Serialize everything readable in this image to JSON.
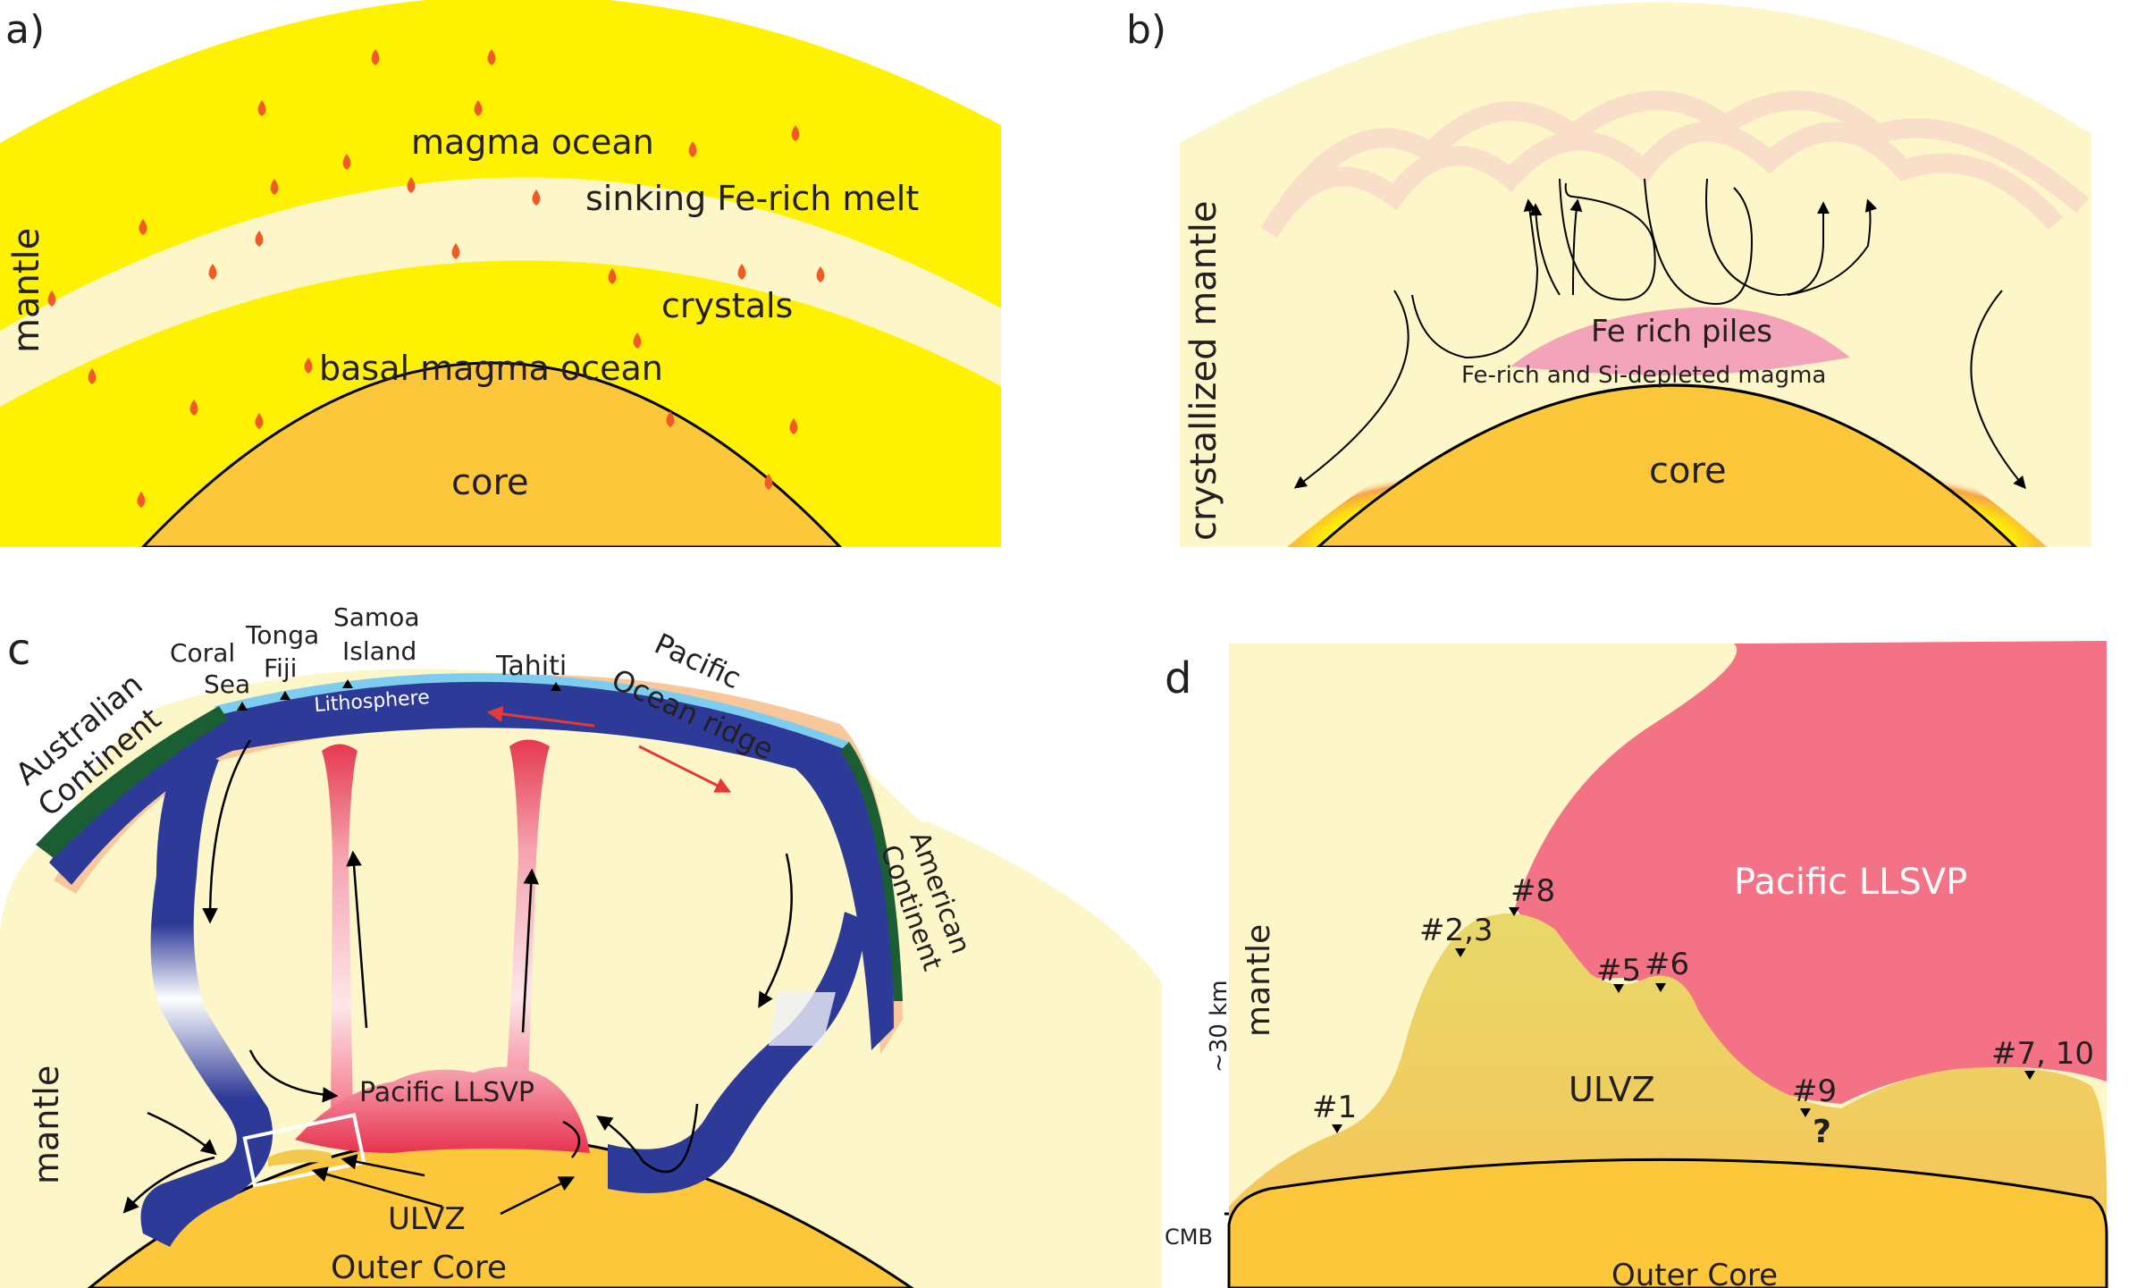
{
  "colors": {
    "yellow": "#fff200",
    "cream": "#fdf6c9",
    "core": "#fcc73a",
    "drop": "#f15a24",
    "pink": "#f47285",
    "ulvz": "#e8cf5e",
    "slab": "#2e3a97",
    "crust": "#1b5e34",
    "sky": "#7ccdf0",
    "peach": "#f8c79a",
    "red": "#e53935"
  },
  "panel_a": {
    "tag": "a)",
    "mantle": "mantle",
    "magma_ocean": "magma ocean",
    "sinking": "sinking Fe-rich melt",
    "crystals": "crystals",
    "basal": "basal magma ocean",
    "core": "core"
  },
  "panel_b": {
    "tag": "b)",
    "mantle": "crystallized mantle",
    "piles": "Fe rich piles",
    "magma": "Fe-rich and Si-depleted magma",
    "core": "core"
  },
  "panel_c": {
    "tag": "c",
    "australian": "Australian",
    "continent_left": "Continent",
    "coral": "Coral",
    "sea": "Sea",
    "tonga": "Tonga",
    "fiji": "Fiji",
    "samoa": "Samoa",
    "island": "Island",
    "tahiti": "Tahiti",
    "pacific": "Pacific",
    "ocean_ridge": "Ocean ridge",
    "american": "American",
    "continent_right": "Continent",
    "lithosphere": "Lithosphere",
    "mantle": "mantle",
    "llsvp": "Pacific LLSVP",
    "ulvz": "ULVZ",
    "outer_core": "Outer Core"
  },
  "panel_d": {
    "tag": "d",
    "mantle": "mantle",
    "scale": "~30 km",
    "cmb": "CMB",
    "llsvp": "Pacific LLSVP",
    "ulvz": "ULVZ",
    "outer_core": "Outer Core",
    "sites": {
      "s1": "#1",
      "s23": "#2,3",
      "s8": "#8",
      "s5": "#5",
      "s6": "#6",
      "s9": "#9",
      "q": "?",
      "s710": "#7, 10"
    }
  }
}
